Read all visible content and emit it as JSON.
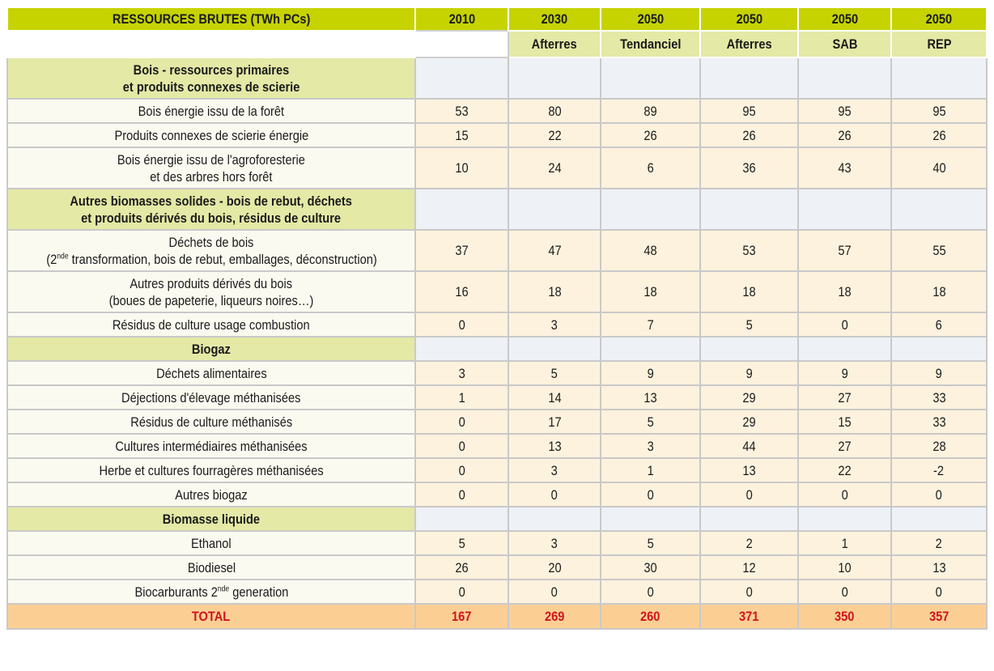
{
  "table": {
    "title": "RESSOURCES BRUTES (TWh PCs)",
    "years": [
      "2010",
      "2030",
      "2050",
      "2050",
      "2050",
      "2050"
    ],
    "scenarios": [
      "",
      "Afterres",
      "Tendanciel",
      "Afterres",
      "SAB",
      "REP"
    ],
    "rows": [
      {
        "type": "section",
        "lines": [
          {
            "text": "Bois - ressources primaires"
          },
          {
            "text": "et produits connexes de scierie"
          }
        ],
        "values": []
      },
      {
        "type": "item",
        "lines": [
          {
            "text": "Bois énergie issu de la forêt"
          }
        ],
        "values": [
          "53",
          "80",
          "89",
          "95",
          "95",
          "95"
        ]
      },
      {
        "type": "item",
        "lines": [
          {
            "text": "Produits connexes de scierie énergie"
          }
        ],
        "values": [
          "15",
          "22",
          "26",
          "26",
          "26",
          "26"
        ]
      },
      {
        "type": "item",
        "lines": [
          {
            "text": "Bois énergie issu de l'agroforesterie"
          },
          {
            "text": "et des arbres hors forêt"
          }
        ],
        "values": [
          "10",
          "24",
          "6",
          "36",
          "43",
          "40"
        ]
      },
      {
        "type": "section",
        "lines": [
          {
            "text": "Autres biomasses solides - bois de rebut, déchets"
          },
          {
            "text": "et produits dérivés du bois, résidus de culture"
          }
        ],
        "values": []
      },
      {
        "type": "item",
        "lines": [
          {
            "text": "Déchets de bois"
          },
          {
            "text": "(2",
            "sup": "nde",
            "rest": " transformation, bois de rebut, emballages, déconstruction)"
          }
        ],
        "values": [
          "37",
          "47",
          "48",
          "53",
          "57",
          "55"
        ]
      },
      {
        "type": "item",
        "lines": [
          {
            "text": "Autres produits dérivés du bois"
          },
          {
            "text": "(boues de papeterie, liqueurs noires…)"
          }
        ],
        "values": [
          "16",
          "18",
          "18",
          "18",
          "18",
          "18"
        ]
      },
      {
        "type": "item",
        "lines": [
          {
            "text": "Résidus de culture usage combustion"
          }
        ],
        "values": [
          "0",
          "3",
          "7",
          "5",
          "0",
          "6"
        ]
      },
      {
        "type": "section",
        "lines": [
          {
            "text": "Biogaz"
          }
        ],
        "values": []
      },
      {
        "type": "item",
        "lines": [
          {
            "text": "Déchets alimentaires"
          }
        ],
        "values": [
          "3",
          "5",
          "9",
          "9",
          "9",
          "9"
        ]
      },
      {
        "type": "item",
        "lines": [
          {
            "text": "Déjections d'élevage méthanisées"
          }
        ],
        "values": [
          "1",
          "14",
          "13",
          "29",
          "27",
          "33"
        ]
      },
      {
        "type": "item",
        "lines": [
          {
            "text": "Résidus de culture méthanisés"
          }
        ],
        "values": [
          "0",
          "17",
          "5",
          "29",
          "15",
          "33"
        ]
      },
      {
        "type": "item",
        "lines": [
          {
            "text": "Cultures intermédiaires méthanisées"
          }
        ],
        "values": [
          "0",
          "13",
          "3",
          "44",
          "27",
          "28"
        ]
      },
      {
        "type": "item",
        "lines": [
          {
            "text": "Herbe et cultures fourragères méthanisées"
          }
        ],
        "values": [
          "0",
          "3",
          "1",
          "13",
          "22",
          "-2"
        ]
      },
      {
        "type": "item",
        "lines": [
          {
            "text": "Autres biogaz"
          }
        ],
        "values": [
          "0",
          "0",
          "0",
          "0",
          "0",
          "0"
        ]
      },
      {
        "type": "section",
        "lines": [
          {
            "text": "Biomasse liquide"
          }
        ],
        "values": []
      },
      {
        "type": "item",
        "lines": [
          {
            "text": "Ethanol"
          }
        ],
        "values": [
          "5",
          "3",
          "5",
          "2",
          "1",
          "2"
        ]
      },
      {
        "type": "item",
        "lines": [
          {
            "text": "Biodiesel"
          }
        ],
        "values": [
          "26",
          "20",
          "30",
          "12",
          "10",
          "13"
        ]
      },
      {
        "type": "item",
        "lines": [
          {
            "text": "Biocarburants 2",
            "sup": "nde",
            "rest": " generation"
          }
        ],
        "values": [
          "0",
          "0",
          "0",
          "0",
          "0",
          "0"
        ]
      },
      {
        "type": "total",
        "lines": [
          {
            "text": "TOTAL"
          }
        ],
        "values": [
          "167",
          "269",
          "260",
          "371",
          "350",
          "357"
        ]
      }
    ]
  },
  "colors": {
    "header": "#c6d300",
    "section": "#e4e9a6",
    "value_cell": "#fdf2dd",
    "total": "#fbcf94",
    "total_text": "#d0141c"
  }
}
